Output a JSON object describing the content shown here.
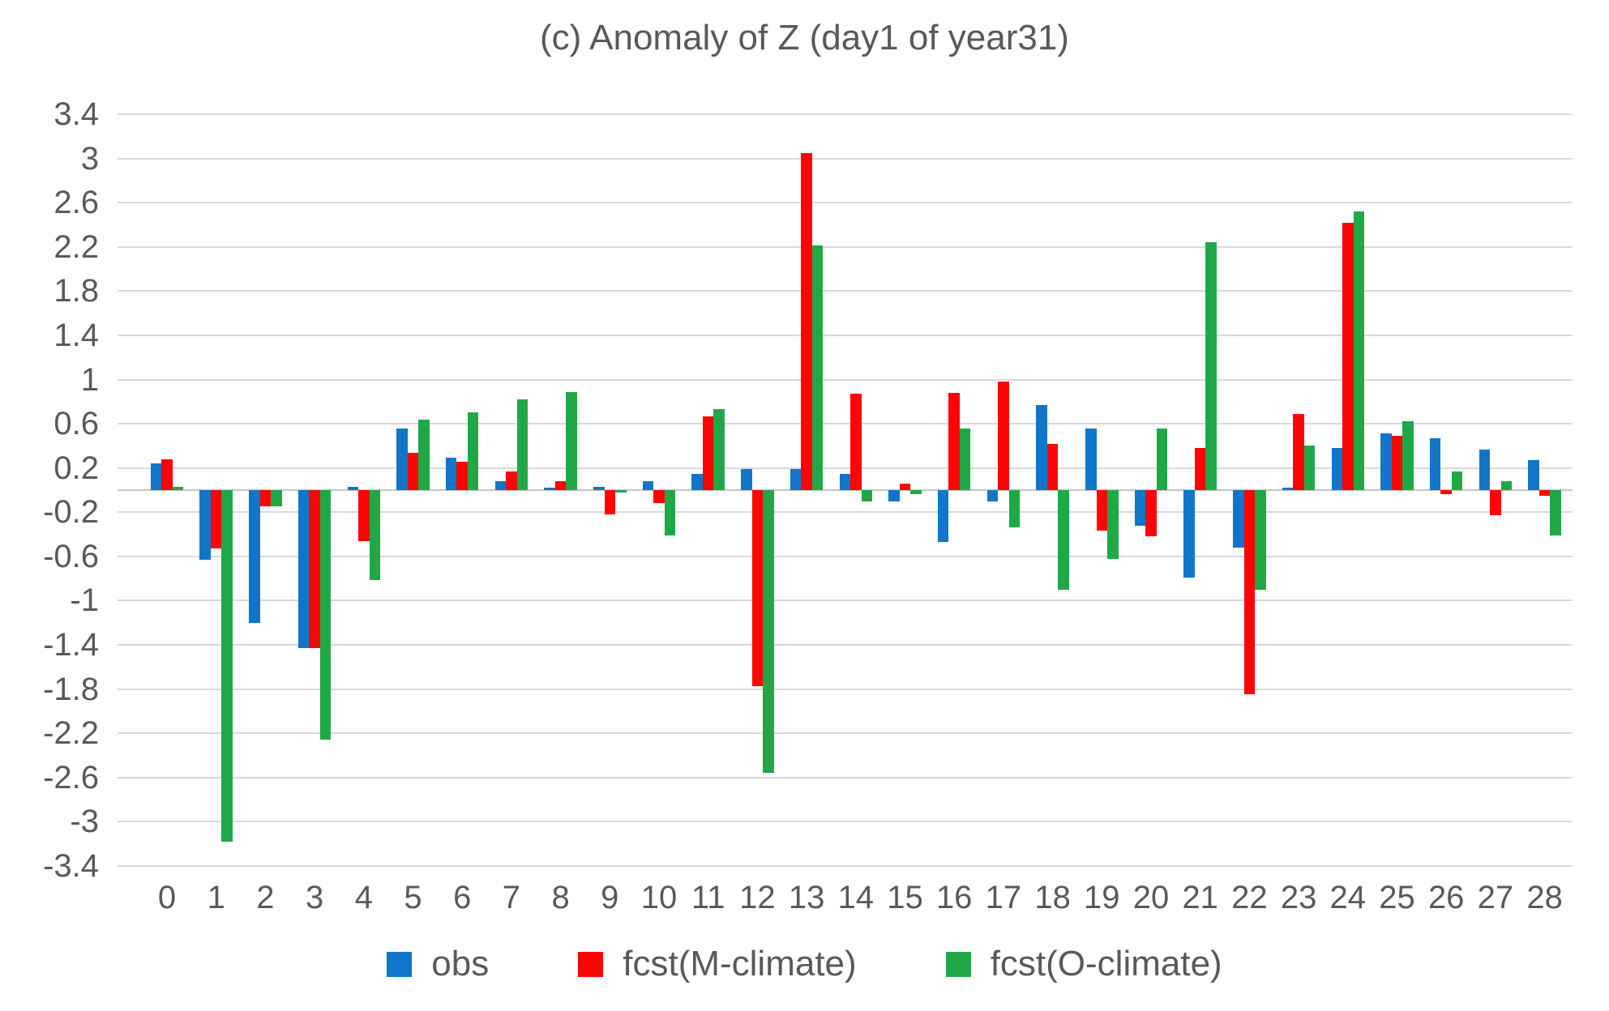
{
  "title": "(c) Anomaly of Z (day1 of year31)",
  "colors": {
    "obs": "#1175ca",
    "fcst_m_climate": "#fe0505",
    "fcst_o_climate": "#21a846",
    "text": "#595959",
    "gridline": "#d9d9d9"
  },
  "chart_data": {
    "type": "bar",
    "title": "(c) Anomaly of Z (day1 of year31)",
    "xlabel": "",
    "ylabel": "",
    "grid": true,
    "legend_position": "bottom",
    "ylim": [
      -3.4,
      3.4
    ],
    "ytick_step": 0.4,
    "yticks": [
      "3.4",
      "3",
      "2.6",
      "2.2",
      "1.8",
      "1.4",
      "1",
      "0.6",
      "0.2",
      "-0.2",
      "-0.6",
      "-1",
      "-1.4",
      "-1.8",
      "-2.2",
      "-2.6",
      "-3",
      "-3.4"
    ],
    "categories": [
      "0",
      "1",
      "2",
      "3",
      "4",
      "5",
      "6",
      "7",
      "8",
      "9",
      "10",
      "11",
      "12",
      "13",
      "14",
      "15",
      "16",
      "17",
      "18",
      "19",
      "20",
      "21",
      "22",
      "23",
      "24",
      "25",
      "26",
      "27",
      "28"
    ],
    "series": [
      {
        "name": "obs",
        "color": "#1175ca",
        "values": [
          0.24,
          -0.63,
          -1.2,
          -1.43,
          0.03,
          0.56,
          0.29,
          0.08,
          0.02,
          0.03,
          0.08,
          0.15,
          0.19,
          0.19,
          0.15,
          -0.1,
          -0.47,
          -0.1,
          0.77,
          0.56,
          -0.32,
          -0.79,
          -0.52,
          0.02,
          0.38,
          0.51,
          0.47,
          0.37,
          0.27
        ]
      },
      {
        "name": "fcst(M-climate)",
        "color": "#fe0505",
        "values": [
          0.28,
          -0.53,
          -0.15,
          -1.43,
          -0.46,
          0.34,
          0.26,
          0.17,
          0.08,
          -0.22,
          -0.12,
          0.67,
          -1.77,
          3.05,
          0.87,
          0.06,
          0.88,
          0.98,
          0.42,
          -0.37,
          -0.42,
          0.38,
          -1.85,
          0.69,
          2.42,
          0.49,
          -0.04,
          -0.23,
          -0.05
        ]
      },
      {
        "name": "fcst(O-climate)",
        "color": "#21a846",
        "values": [
          0.03,
          -3.18,
          -0.15,
          -2.26,
          -0.81,
          0.64,
          0.7,
          0.82,
          0.89,
          -0.02,
          -0.41,
          0.73,
          -2.56,
          2.21,
          -0.1,
          -0.04,
          0.56,
          -0.34,
          -0.9,
          -0.62,
          0.56,
          2.24,
          -0.9,
          0.4,
          2.52,
          0.62,
          0.17,
          0.08,
          -0.41
        ]
      }
    ]
  }
}
